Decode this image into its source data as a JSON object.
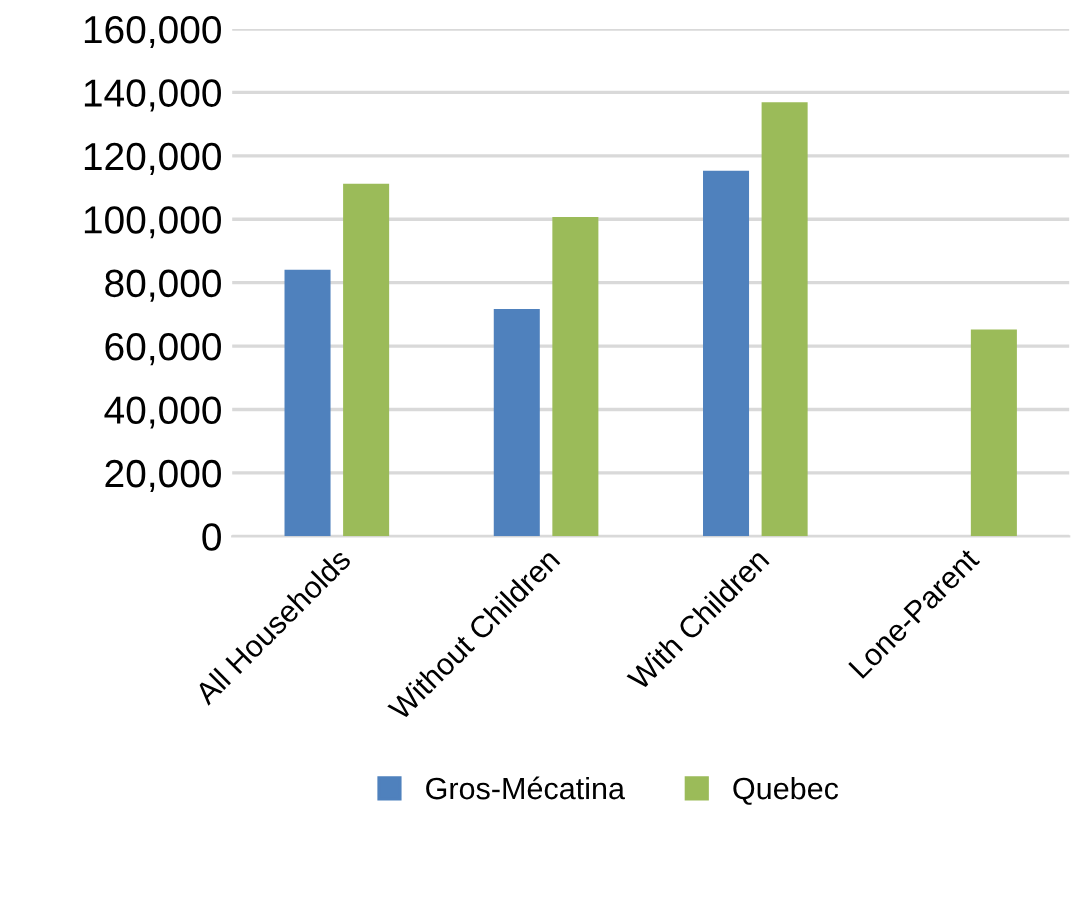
{
  "chart_data": {
    "type": "bar",
    "categories": [
      "All Households",
      "Without Children",
      "With Children",
      "Lone-Parent"
    ],
    "series": [
      {
        "name": "Gros-Mécatina",
        "color": "#4f81bd",
        "values": [
          84100,
          71700,
          115300,
          null
        ]
      },
      {
        "name": "Quebec",
        "color": "#9bbb59",
        "values": [
          111200,
          100700,
          136900,
          65200
        ]
      }
    ],
    "ylim": [
      0,
      160000
    ],
    "yticks": [
      {
        "value": 0,
        "label": "0"
      },
      {
        "value": 20000,
        "label": "20,000"
      },
      {
        "value": 40000,
        "label": "40,000"
      },
      {
        "value": 60000,
        "label": "60,000"
      },
      {
        "value": 80000,
        "label": "80,000"
      },
      {
        "value": 100000,
        "label": "100,000"
      },
      {
        "value": 120000,
        "label": "120,000"
      },
      {
        "value": 140000,
        "label": "140,000"
      },
      {
        "value": 160000,
        "label": "160,000"
      }
    ],
    "grid": "y",
    "legend": "bottom"
  }
}
